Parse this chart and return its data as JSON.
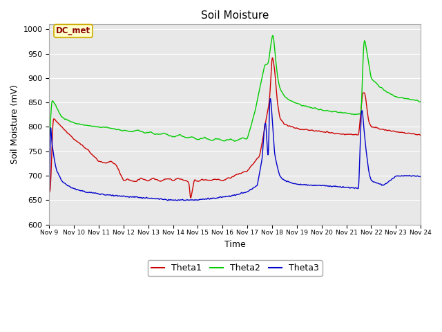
{
  "title": "Soil Moisture",
  "xlabel": "Time",
  "ylabel": "Soil Moisture (mV)",
  "ylim": [
    600,
    1010
  ],
  "yticks": [
    600,
    650,
    700,
    750,
    800,
    850,
    900,
    950,
    1000
  ],
  "xtick_labels": [
    "Nov 9",
    "Nov 10",
    "Nov 11",
    "Nov 12",
    "Nov 13",
    "Nov 14",
    "Nov 15",
    "Nov 16",
    "Nov 17",
    "Nov 18",
    "Nov 19",
    "Nov 20",
    "Nov 21",
    "Nov 22",
    "Nov 23",
    "Nov 24"
  ],
  "colors": {
    "theta1": "#cc0000",
    "theta2": "#00cc00",
    "theta3": "#0000cc",
    "background": "#e8e8e8",
    "fig_background": "#ffffff",
    "grid": "#ffffff",
    "annotation_box_bg": "#ffffcc",
    "annotation_box_edge": "#ccaa00"
  },
  "annotation_text": "DC_met",
  "legend_labels": [
    "Theta1",
    "Theta2",
    "Theta3"
  ],
  "title_fontsize": 11,
  "axis_label_fontsize": 9,
  "tick_fontsize": 8
}
